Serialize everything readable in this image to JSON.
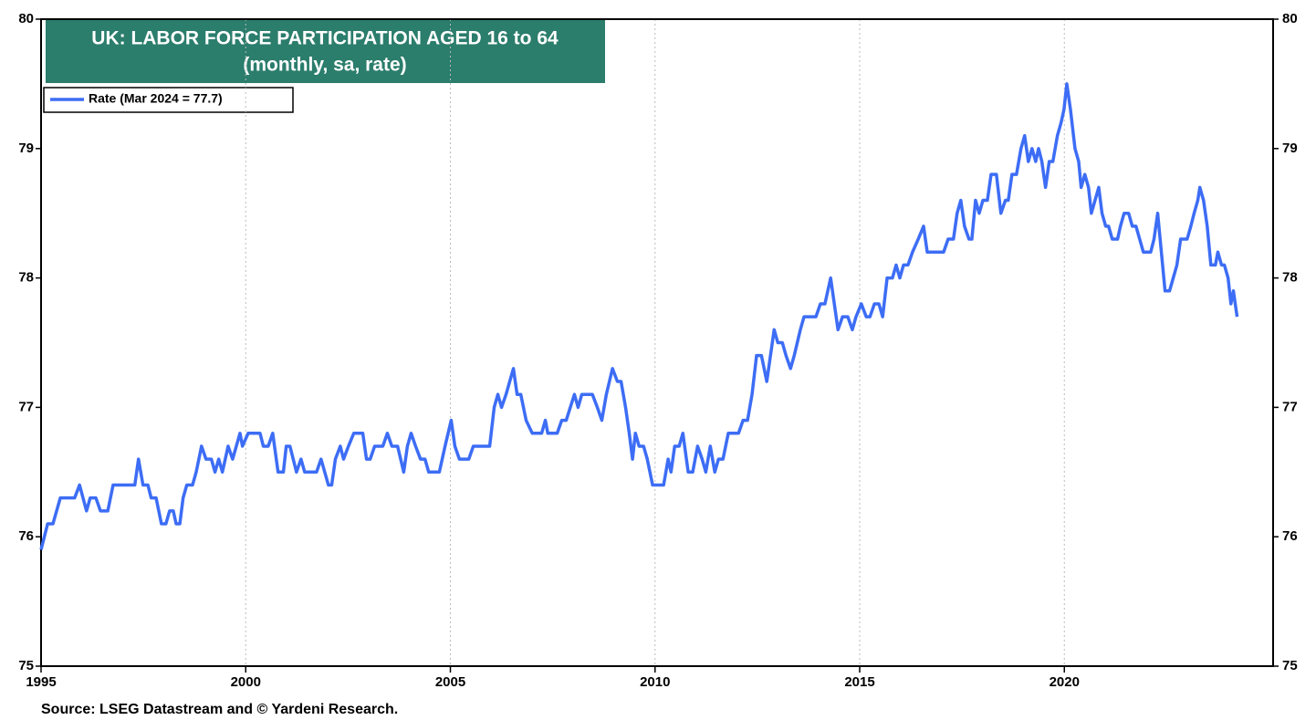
{
  "chart_data": {
    "type": "line",
    "title": "UK: LABOR FORCE PARTICIPATION AGED 16 to 64",
    "subtitle": "(monthly, sa, rate)",
    "source": "Source: LSEG Datastream and © Yardeni Research.",
    "xlim": [
      1995,
      2025.1
    ],
    "xticks": [
      1995,
      2000,
      2005,
      2010,
      2015,
      2020
    ],
    "ylim": [
      75,
      80
    ],
    "yticks": [
      75,
      76,
      77,
      78,
      79,
      80
    ],
    "grid": true,
    "x": [
      1995.0,
      1995.16,
      1995.29,
      1995.47,
      1995.82,
      1995.94,
      1996.11,
      1996.2,
      1996.34,
      1996.45,
      1996.63,
      1996.76,
      1997.29,
      1997.38,
      1997.49,
      1997.61,
      1997.69,
      1997.81,
      1997.94,
      1998.05,
      1998.14,
      1998.23,
      1998.3,
      1998.39,
      1998.47,
      1998.56,
      1998.7,
      1998.79,
      1998.92,
      1999.03,
      1999.16,
      1999.25,
      1999.34,
      1999.43,
      1999.57,
      1999.68,
      1999.86,
      1999.92,
      2000.06,
      2000.35,
      2000.43,
      2000.55,
      2000.66,
      2000.79,
      2000.92,
      2000.99,
      2001.08,
      2001.24,
      2001.35,
      2001.44,
      2001.73,
      2001.84,
      2001.93,
      2002.02,
      2002.1,
      2002.19,
      2002.31,
      2002.39,
      2002.51,
      2002.64,
      2002.86,
      2002.95,
      2003.04,
      2003.15,
      2003.35,
      2003.46,
      2003.57,
      2003.71,
      2003.86,
      2003.95,
      2004.04,
      2004.15,
      2004.27,
      2004.38,
      2004.47,
      2004.73,
      2004.87,
      2005.02,
      2005.11,
      2005.22,
      2005.45,
      2005.56,
      2005.96,
      2006.07,
      2006.16,
      2006.25,
      2006.36,
      2006.45,
      2006.54,
      2006.63,
      2006.72,
      2006.85,
      2007.0,
      2007.23,
      2007.32,
      2007.38,
      2007.61,
      2007.72,
      2007.83,
      2008.03,
      2008.12,
      2008.21,
      2008.47,
      2008.59,
      2008.7,
      2008.81,
      2008.96,
      2009.08,
      2009.17,
      2009.28,
      2009.37,
      2009.45,
      2009.52,
      2009.61,
      2009.72,
      2009.81,
      2009.94,
      2010.21,
      2010.32,
      2010.39,
      2010.48,
      2010.59,
      2010.68,
      2010.81,
      2010.92,
      2011.04,
      2011.15,
      2011.24,
      2011.35,
      2011.46,
      2011.55,
      2011.66,
      2011.79,
      2012.04,
      2012.15,
      2012.26,
      2012.37,
      2012.48,
      2012.6,
      2012.73,
      2012.82,
      2012.91,
      2013.0,
      2013.11,
      2013.2,
      2013.31,
      2013.4,
      2013.55,
      2013.64,
      2013.93,
      2014.04,
      2014.15,
      2014.29,
      2014.38,
      2014.47,
      2014.58,
      2014.71,
      2014.82,
      2014.91,
      2015.04,
      2015.16,
      2015.25,
      2015.36,
      2015.47,
      2015.56,
      2015.67,
      2015.8,
      2015.89,
      2015.98,
      2016.07,
      2016.18,
      2016.29,
      2016.43,
      2016.56,
      2016.65,
      2017.05,
      2017.16,
      2017.29,
      2017.38,
      2017.47,
      2017.56,
      2017.67,
      2017.74,
      2017.83,
      2017.92,
      2018.01,
      2018.12,
      2018.21,
      2018.34,
      2018.45,
      2018.56,
      2018.63,
      2018.72,
      2018.83,
      2018.94,
      2019.03,
      2019.12,
      2019.21,
      2019.3,
      2019.37,
      2019.45,
      2019.54,
      2019.63,
      2019.72,
      2019.83,
      2019.92,
      2019.99,
      2020.06,
      2020.15,
      2020.26,
      2020.35,
      2020.41,
      2020.5,
      2020.59,
      2020.66,
      2020.75,
      2020.84,
      2020.92,
      2021.01,
      2021.08,
      2021.17,
      2021.3,
      2021.37,
      2021.46,
      2021.57,
      2021.66,
      2021.75,
      2021.84,
      2021.93,
      2022.11,
      2022.19,
      2022.28,
      2022.37,
      2022.46,
      2022.57,
      2022.66,
      2022.75,
      2022.84,
      2023.0,
      2023.09,
      2023.17,
      2023.26,
      2023.31,
      2023.4,
      2023.49,
      2023.58,
      2023.69,
      2023.75,
      2023.84,
      2023.91,
      2024.0,
      2024.07,
      2024.13,
      2024.22
    ],
    "series": [
      {
        "name": "Rate (Mar 2024 = 77.7)",
        "color": "#3d6df5",
        "values": [
          75.9,
          76.1,
          76.1,
          76.3,
          76.3,
          76.4,
          76.2,
          76.3,
          76.3,
          76.2,
          76.2,
          76.4,
          76.4,
          76.6,
          76.4,
          76.4,
          76.3,
          76.3,
          76.1,
          76.1,
          76.2,
          76.2,
          76.1,
          76.1,
          76.3,
          76.4,
          76.4,
          76.5,
          76.7,
          76.6,
          76.6,
          76.5,
          76.6,
          76.5,
          76.7,
          76.6,
          76.8,
          76.7,
          76.8,
          76.8,
          76.7,
          76.7,
          76.8,
          76.5,
          76.5,
          76.7,
          76.7,
          76.5,
          76.6,
          76.5,
          76.5,
          76.6,
          76.5,
          76.4,
          76.4,
          76.6,
          76.7,
          76.6,
          76.7,
          76.8,
          76.8,
          76.6,
          76.6,
          76.7,
          76.7,
          76.8,
          76.7,
          76.7,
          76.5,
          76.7,
          76.8,
          76.7,
          76.6,
          76.6,
          76.5,
          76.5,
          76.7,
          76.9,
          76.7,
          76.6,
          76.6,
          76.7,
          76.7,
          77.0,
          77.1,
          77.0,
          77.1,
          77.2,
          77.3,
          77.1,
          77.1,
          76.9,
          76.8,
          76.8,
          76.9,
          76.8,
          76.8,
          76.9,
          76.9,
          77.1,
          77.0,
          77.1,
          77.1,
          77.0,
          76.9,
          77.1,
          77.3,
          77.2,
          77.2,
          77.0,
          76.8,
          76.6,
          76.8,
          76.7,
          76.7,
          76.6,
          76.4,
          76.4,
          76.6,
          76.5,
          76.7,
          76.7,
          76.8,
          76.5,
          76.5,
          76.7,
          76.6,
          76.5,
          76.7,
          76.5,
          76.6,
          76.6,
          76.8,
          76.8,
          76.9,
          76.9,
          77.1,
          77.4,
          77.4,
          77.2,
          77.4,
          77.6,
          77.5,
          77.5,
          77.4,
          77.3,
          77.4,
          77.6,
          77.7,
          77.7,
          77.8,
          77.8,
          78.0,
          77.8,
          77.6,
          77.7,
          77.7,
          77.6,
          77.7,
          77.8,
          77.7,
          77.7,
          77.8,
          77.8,
          77.7,
          78.0,
          78.0,
          78.1,
          78.0,
          78.1,
          78.1,
          78.2,
          78.3,
          78.4,
          78.2,
          78.2,
          78.3,
          78.3,
          78.5,
          78.6,
          78.4,
          78.3,
          78.3,
          78.6,
          78.5,
          78.6,
          78.6,
          78.8,
          78.8,
          78.5,
          78.6,
          78.6,
          78.8,
          78.8,
          79.0,
          79.1,
          78.9,
          79.0,
          78.9,
          79.0,
          78.9,
          78.7,
          78.9,
          78.9,
          79.1,
          79.2,
          79.3,
          79.5,
          79.3,
          79.0,
          78.9,
          78.7,
          78.8,
          78.7,
          78.5,
          78.6,
          78.7,
          78.5,
          78.4,
          78.4,
          78.3,
          78.3,
          78.4,
          78.5,
          78.5,
          78.4,
          78.4,
          78.3,
          78.2,
          78.2,
          78.3,
          78.5,
          78.2,
          77.9,
          77.9,
          78.0,
          78.1,
          78.3,
          78.3,
          78.4,
          78.5,
          78.6,
          78.7,
          78.6,
          78.4,
          78.1,
          78.1,
          78.2,
          78.1,
          78.1,
          78.0,
          77.8,
          77.9,
          77.7
        ]
      }
    ]
  }
}
